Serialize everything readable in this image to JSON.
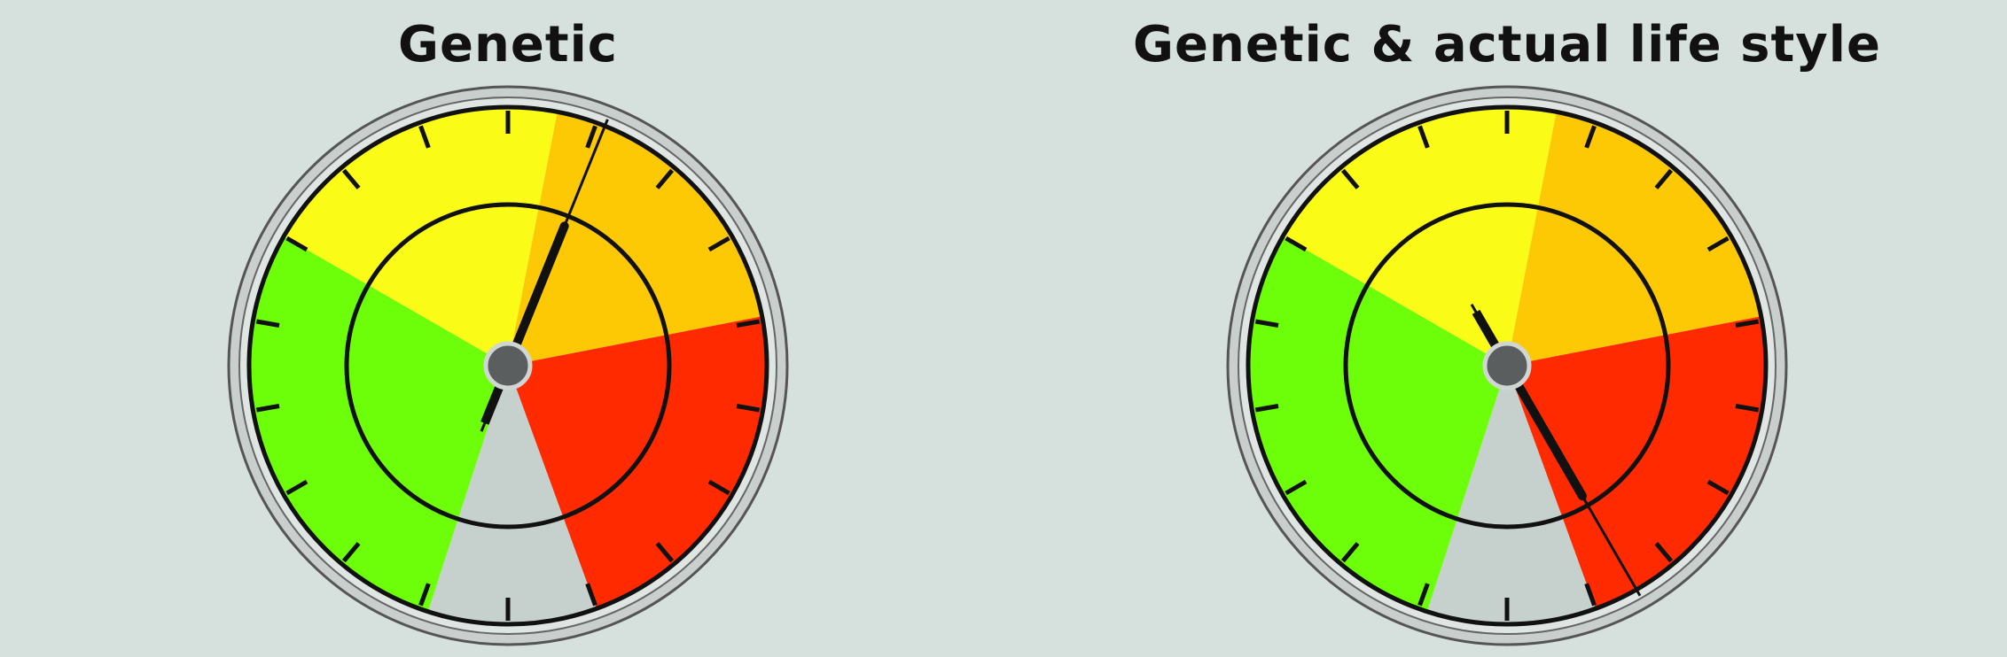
{
  "gauges": [
    {
      "title": "Genetic",
      "needle_angle_deg": 22,
      "needle_tail_deg": 202,
      "colors": {
        "green": "#6dff0a",
        "yellow": "#fbfb18",
        "orange": "#fdc905",
        "red": "#ff2a00",
        "gray": "#c6d0cd"
      }
    },
    {
      "title": "Genetic & actual life style",
      "needle_angle_deg": 150,
      "needle_tail_deg": 330,
      "colors": {
        "green": "#6dff0a",
        "yellow": "#fbfb18",
        "orange": "#fdc905",
        "red": "#ff2a00",
        "gray": "#c6d0cd"
      }
    }
  ]
}
